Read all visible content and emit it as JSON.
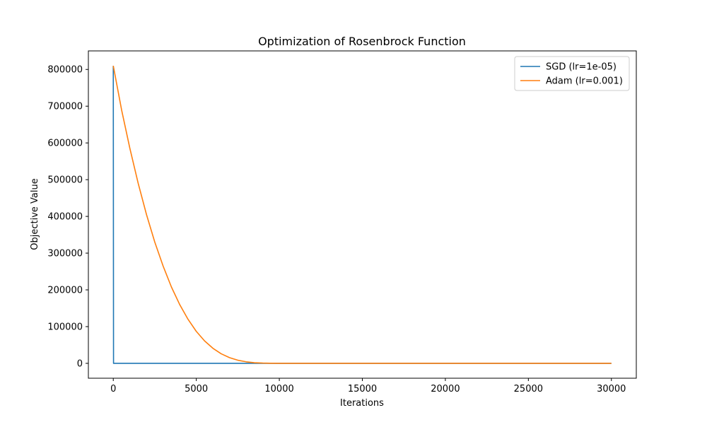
{
  "chart_data": {
    "type": "line",
    "title": "Optimization of Rosenbrock Function",
    "xlabel": "Iterations",
    "ylabel": "Objective Value",
    "xlim": [
      -1500,
      31500
    ],
    "ylim": [
      -40500,
      850500
    ],
    "xticks": [
      0,
      5000,
      10000,
      15000,
      20000,
      25000,
      30000
    ],
    "xtick_labels": [
      "0",
      "5000",
      "10000",
      "15000",
      "20000",
      "25000",
      "30000"
    ],
    "yticks": [
      0,
      100000,
      200000,
      300000,
      400000,
      500000,
      600000,
      700000,
      800000
    ],
    "ytick_labels": [
      "0",
      "100000",
      "200000",
      "300000",
      "400000",
      "500000",
      "600000",
      "700000",
      "800000"
    ],
    "grid": false,
    "legend_position": "top-right",
    "series": [
      {
        "name": "SGD (lr=1e-05)",
        "color": "#1f77b4",
        "x": [
          0,
          15,
          30000
        ],
        "y": [
          810000,
          0,
          0
        ]
      },
      {
        "name": "Adam (lr=0.001)",
        "color": "#ff7f0e",
        "x": [
          0,
          250,
          500,
          1000,
          1500,
          2000,
          2500,
          3000,
          3500,
          4000,
          4500,
          5000,
          5500,
          6000,
          6500,
          7000,
          7500,
          8000,
          8500,
          9000,
          9500,
          10000,
          11000,
          12000,
          15000,
          20000,
          25000,
          30000
        ],
        "y": [
          810000,
          750000,
          690000,
          585000,
          490000,
          405000,
          330000,
          265000,
          208000,
          160000,
          120000,
          87000,
          61000,
          41000,
          26000,
          15500,
          8500,
          4200,
          1800,
          700,
          200,
          50,
          0,
          0,
          0,
          0,
          0,
          0
        ]
      }
    ]
  }
}
